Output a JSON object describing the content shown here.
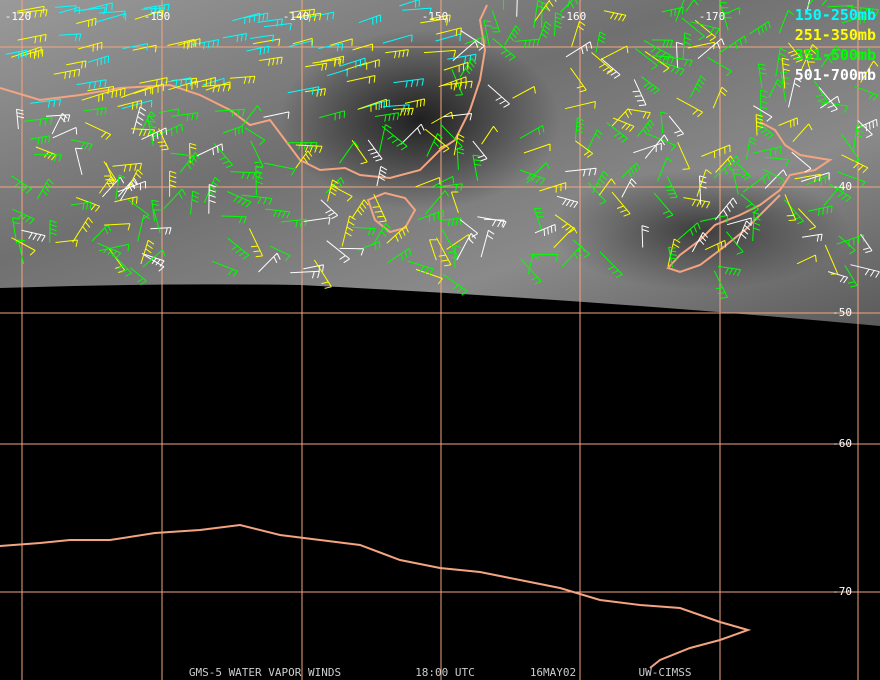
{
  "map": {
    "lon_labels": [
      "-120",
      "-130",
      "-140",
      "-150",
      "-160",
      "-170"
    ],
    "lat_labels": [
      "-40",
      "-50",
      "-60",
      "-70"
    ],
    "legend": [
      {
        "label": "150-250mb",
        "color": "#00ffff"
      },
      {
        "label": "251-350mb",
        "color": "#ffff00"
      },
      {
        "label": "351-500mb",
        "color": "#00ff00"
      },
      {
        "label": "501-700mb",
        "color": "#ffffff"
      }
    ],
    "footer": [
      "GMS-5 WATER VAPOR WINDS",
      "18:00 UTC",
      "16MAY02",
      "UW-CIMSS"
    ]
  }
}
